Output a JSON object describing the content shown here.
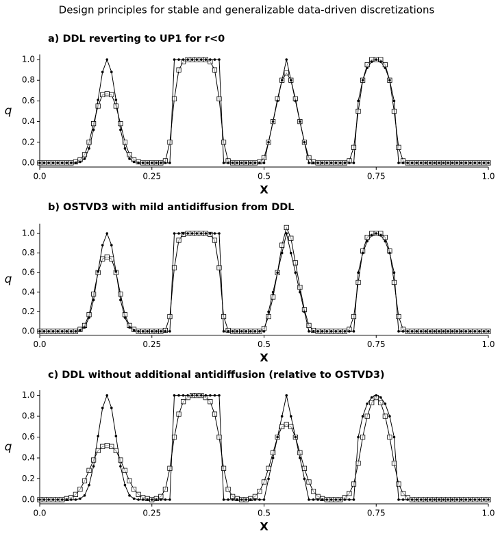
{
  "header": "Design principles for stable and generalizable data-driven discretizations",
  "chart_data": [
    {
      "type": "line",
      "title": "a) DDL reverting to UP1 for r<0",
      "xlabel": "X",
      "ylabel": "q",
      "x": [
        0,
        0.01,
        0.02,
        0.03,
        0.04,
        0.05,
        0.06,
        0.07,
        0.08,
        0.09,
        0.1,
        0.11,
        0.12,
        0.13,
        0.14,
        0.15,
        0.16,
        0.17,
        0.18,
        0.19,
        0.2,
        0.21,
        0.22,
        0.23,
        0.24,
        0.25,
        0.26,
        0.27,
        0.28,
        0.29,
        0.3,
        0.31,
        0.32,
        0.33,
        0.34,
        0.35,
        0.36,
        0.37,
        0.38,
        0.39,
        0.4,
        0.41,
        0.42,
        0.43,
        0.44,
        0.45,
        0.46,
        0.47,
        0.48,
        0.49,
        0.5,
        0.51,
        0.52,
        0.53,
        0.54,
        0.55,
        0.56,
        0.57,
        0.58,
        0.59,
        0.6,
        0.61,
        0.62,
        0.63,
        0.64,
        0.65,
        0.66,
        0.67,
        0.68,
        0.69,
        0.7,
        0.71,
        0.72,
        0.73,
        0.74,
        0.75,
        0.76,
        0.77,
        0.78,
        0.79,
        0.8,
        0.81,
        0.82,
        0.83,
        0.84,
        0.85,
        0.86,
        0.87,
        0.88,
        0.89,
        0.9,
        0.91,
        0.92,
        0.93,
        0.94,
        0.95,
        0.96,
        0.97,
        0.98,
        0.99,
        1
      ],
      "series": [
        {
          "color": "#000000",
          "marker": "square",
          "values": [
            0,
            0,
            0,
            0,
            0,
            0,
            0,
            0,
            0.01,
            0.03,
            0.08,
            0.2,
            0.38,
            0.55,
            0.66,
            0.67,
            0.66,
            0.55,
            0.38,
            0.2,
            0.08,
            0.03,
            0.01,
            0,
            0,
            0,
            0,
            0,
            0.02,
            0.2,
            0.62,
            0.9,
            0.98,
            1,
            1,
            1,
            1,
            1,
            0.98,
            0.9,
            0.62,
            0.2,
            0.02,
            0,
            0,
            0,
            0,
            0,
            0,
            0.01,
            0.05,
            0.2,
            0.4,
            0.62,
            0.8,
            0.87,
            0.8,
            0.62,
            0.4,
            0.2,
            0.05,
            0.01,
            0,
            0,
            0,
            0,
            0,
            0,
            0,
            0.02,
            0.15,
            0.5,
            0.8,
            0.95,
            1,
            1,
            1,
            0.95,
            0.8,
            0.5,
            0.15,
            0.02,
            0,
            0,
            0,
            0,
            0,
            0,
            0,
            0,
            0,
            0,
            0,
            0,
            0,
            0,
            0,
            0,
            0,
            0,
            0
          ]
        },
        {
          "color": "#000000",
          "marker": "dot",
          "values": [
            0,
            0,
            0,
            0,
            0,
            0,
            0,
            0,
            0,
            0.01,
            0.04,
            0.14,
            0.32,
            0.61,
            0.88,
            1,
            0.88,
            0.61,
            0.32,
            0.14,
            0.04,
            0.01,
            0,
            0,
            0,
            0,
            0,
            0,
            0,
            0,
            1,
            1,
            1,
            1,
            1,
            1,
            1,
            1,
            1,
            1,
            1,
            0,
            0,
            0,
            0,
            0,
            0,
            0,
            0,
            0,
            0,
            0.2,
            0.4,
            0.6,
            0.8,
            1,
            0.8,
            0.6,
            0.4,
            0.2,
            0,
            0,
            0,
            0,
            0,
            0,
            0,
            0,
            0,
            0,
            0,
            0.6,
            0.8,
            0.92,
            0.98,
            1,
            0.98,
            0.92,
            0.8,
            0.6,
            0,
            0,
            0,
            0,
            0,
            0,
            0,
            0,
            0,
            0,
            0,
            0,
            0,
            0,
            0,
            0,
            0,
            0,
            0,
            0,
            0
          ]
        }
      ],
      "xlim": [
        0,
        1
      ],
      "xticks": [
        {
          "value": 0,
          "label": "0.0"
        },
        0.25,
        0.5,
        0.75,
        {
          "value": 1,
          "label": "1.0"
        }
      ],
      "ylim": [
        -0.04,
        1.05
      ],
      "yticks": [
        {
          "value": 0,
          "label": "0.0"
        },
        0.2,
        0.4,
        0.6,
        0.8,
        {
          "value": 1,
          "label": "1.0"
        }
      ]
    },
    {
      "type": "line",
      "title": "b) OSTVD3 with mild antidiffusion from DDL",
      "xlabel": "X",
      "ylabel": "q",
      "x": [
        0,
        0.01,
        0.02,
        0.03,
        0.04,
        0.05,
        0.06,
        0.07,
        0.08,
        0.09,
        0.1,
        0.11,
        0.12,
        0.13,
        0.14,
        0.15,
        0.16,
        0.17,
        0.18,
        0.19,
        0.2,
        0.21,
        0.22,
        0.23,
        0.24,
        0.25,
        0.26,
        0.27,
        0.28,
        0.29,
        0.3,
        0.31,
        0.32,
        0.33,
        0.34,
        0.35,
        0.36,
        0.37,
        0.38,
        0.39,
        0.4,
        0.41,
        0.42,
        0.43,
        0.44,
        0.45,
        0.46,
        0.47,
        0.48,
        0.49,
        0.5,
        0.51,
        0.52,
        0.53,
        0.54,
        0.55,
        0.56,
        0.57,
        0.58,
        0.59,
        0.6,
        0.61,
        0.62,
        0.63,
        0.64,
        0.65,
        0.66,
        0.67,
        0.68,
        0.69,
        0.7,
        0.71,
        0.72,
        0.73,
        0.74,
        0.75,
        0.76,
        0.77,
        0.78,
        0.79,
        0.8,
        0.81,
        0.82,
        0.83,
        0.84,
        0.85,
        0.86,
        0.87,
        0.88,
        0.89,
        0.9,
        0.91,
        0.92,
        0.93,
        0.94,
        0.95,
        0.96,
        0.97,
        0.98,
        0.99,
        1
      ],
      "series": [
        {
          "color": "#000000",
          "marker": "square",
          "values": [
            0,
            0,
            0,
            0,
            0,
            0,
            0,
            0,
            0,
            0.02,
            0.06,
            0.17,
            0.38,
            0.6,
            0.74,
            0.76,
            0.74,
            0.6,
            0.38,
            0.17,
            0.06,
            0.02,
            0,
            0,
            0,
            0,
            0,
            0,
            0.01,
            0.15,
            0.65,
            0.93,
            0.99,
            1,
            1,
            1,
            1,
            1,
            0.99,
            0.93,
            0.65,
            0.15,
            0.01,
            0,
            0,
            0,
            0,
            0,
            0,
            0,
            0.03,
            0.15,
            0.35,
            0.6,
            0.88,
            1.06,
            0.95,
            0.7,
            0.45,
            0.22,
            0.06,
            0.01,
            0,
            0,
            0,
            0,
            0,
            0,
            0,
            0.02,
            0.15,
            0.5,
            0.82,
            0.96,
            1,
            1,
            1,
            0.96,
            0.82,
            0.5,
            0.15,
            0.02,
            0,
            0,
            0,
            0,
            0,
            0,
            0,
            0,
            0,
            0,
            0,
            0,
            0,
            0,
            0,
            0,
            0,
            0,
            0
          ]
        },
        {
          "color": "#000000",
          "marker": "dot",
          "values": [
            0,
            0,
            0,
            0,
            0,
            0,
            0,
            0,
            0,
            0.01,
            0.04,
            0.14,
            0.32,
            0.61,
            0.88,
            1,
            0.88,
            0.61,
            0.32,
            0.14,
            0.04,
            0.01,
            0,
            0,
            0,
            0,
            0,
            0,
            0,
            0,
            1,
            1,
            1,
            1,
            1,
            1,
            1,
            1,
            1,
            1,
            1,
            0,
            0,
            0,
            0,
            0,
            0,
            0,
            0,
            0,
            0,
            0.2,
            0.4,
            0.6,
            0.8,
            1,
            0.8,
            0.6,
            0.4,
            0.2,
            0,
            0,
            0,
            0,
            0,
            0,
            0,
            0,
            0,
            0,
            0,
            0.6,
            0.8,
            0.92,
            0.98,
            1,
            0.98,
            0.92,
            0.8,
            0.6,
            0,
            0,
            0,
            0,
            0,
            0,
            0,
            0,
            0,
            0,
            0,
            0,
            0,
            0,
            0,
            0,
            0,
            0,
            0,
            0,
            0
          ]
        }
      ],
      "xlim": [
        0,
        1
      ],
      "xticks": [
        {
          "value": 0,
          "label": "0.0"
        },
        0.25,
        0.5,
        0.75,
        {
          "value": 1,
          "label": "1.0"
        }
      ],
      "ylim": [
        -0.04,
        1.1
      ],
      "yticks": [
        {
          "value": 0,
          "label": "0.0"
        },
        0.2,
        0.4,
        0.6,
        0.8,
        {
          "value": 1,
          "label": "1.0"
        }
      ]
    },
    {
      "type": "line",
      "title": "c) DDL without additional antidiffusion (relative to OSTVD3)",
      "xlabel": "X",
      "ylabel": "q",
      "x": [
        0,
        0.01,
        0.02,
        0.03,
        0.04,
        0.05,
        0.06,
        0.07,
        0.08,
        0.09,
        0.1,
        0.11,
        0.12,
        0.13,
        0.14,
        0.15,
        0.16,
        0.17,
        0.18,
        0.19,
        0.2,
        0.21,
        0.22,
        0.23,
        0.24,
        0.25,
        0.26,
        0.27,
        0.28,
        0.29,
        0.3,
        0.31,
        0.32,
        0.33,
        0.34,
        0.35,
        0.36,
        0.37,
        0.38,
        0.39,
        0.4,
        0.41,
        0.42,
        0.43,
        0.44,
        0.45,
        0.46,
        0.47,
        0.48,
        0.49,
        0.5,
        0.51,
        0.52,
        0.53,
        0.54,
        0.55,
        0.56,
        0.57,
        0.58,
        0.59,
        0.6,
        0.61,
        0.62,
        0.63,
        0.64,
        0.65,
        0.66,
        0.67,
        0.68,
        0.69,
        0.7,
        0.71,
        0.72,
        0.73,
        0.74,
        0.75,
        0.76,
        0.77,
        0.78,
        0.79,
        0.8,
        0.81,
        0.82,
        0.83,
        0.84,
        0.85,
        0.86,
        0.87,
        0.88,
        0.89,
        0.9,
        0.91,
        0.92,
        0.93,
        0.94,
        0.95,
        0.96,
        0.97,
        0.98,
        0.99,
        1
      ],
      "series": [
        {
          "color": "#000000",
          "marker": "square",
          "values": [
            0,
            0,
            0,
            0,
            0,
            0,
            0.01,
            0.02,
            0.05,
            0.1,
            0.18,
            0.28,
            0.38,
            0.47,
            0.51,
            0.52,
            0.51,
            0.47,
            0.38,
            0.28,
            0.18,
            0.1,
            0.05,
            0.02,
            0.01,
            0,
            0.01,
            0.03,
            0.1,
            0.3,
            0.6,
            0.82,
            0.94,
            0.98,
            1,
            1,
            1,
            0.98,
            0.94,
            0.82,
            0.6,
            0.3,
            0.1,
            0.03,
            0.01,
            0,
            0,
            0.01,
            0.03,
            0.08,
            0.17,
            0.3,
            0.45,
            0.6,
            0.7,
            0.72,
            0.7,
            0.6,
            0.45,
            0.3,
            0.17,
            0.08,
            0.03,
            0.01,
            0,
            0,
            0,
            0,
            0.02,
            0.06,
            0.15,
            0.35,
            0.6,
            0.8,
            0.93,
            0.98,
            0.93,
            0.8,
            0.6,
            0.35,
            0.15,
            0.06,
            0.02,
            0,
            0,
            0,
            0,
            0,
            0,
            0,
            0,
            0,
            0,
            0,
            0,
            0,
            0,
            0,
            0,
            0,
            0
          ]
        },
        {
          "color": "#000000",
          "marker": "dot",
          "values": [
            0,
            0,
            0,
            0,
            0,
            0,
            0,
            0,
            0,
            0.01,
            0.04,
            0.14,
            0.32,
            0.61,
            0.88,
            1,
            0.88,
            0.61,
            0.32,
            0.14,
            0.04,
            0.01,
            0,
            0,
            0,
            0,
            0,
            0,
            0,
            0,
            1,
            1,
            1,
            1,
            1,
            1,
            1,
            1,
            1,
            1,
            1,
            0,
            0,
            0,
            0,
            0,
            0,
            0,
            0,
            0,
            0,
            0.2,
            0.4,
            0.6,
            0.8,
            1,
            0.8,
            0.6,
            0.4,
            0.2,
            0,
            0,
            0,
            0,
            0,
            0,
            0,
            0,
            0,
            0,
            0,
            0.6,
            0.8,
            0.92,
            0.98,
            1,
            0.98,
            0.92,
            0.8,
            0.6,
            0,
            0,
            0,
            0,
            0,
            0,
            0,
            0,
            0,
            0,
            0,
            0,
            0,
            0,
            0,
            0,
            0,
            0,
            0,
            0,
            0
          ]
        }
      ],
      "xlim": [
        0,
        1
      ],
      "xticks": [
        {
          "value": 0,
          "label": "0.0"
        },
        0.25,
        0.5,
        0.75,
        {
          "value": 1,
          "label": "1.0"
        }
      ],
      "ylim": [
        -0.04,
        1.05
      ],
      "yticks": [
        {
          "value": 0,
          "label": "0.0"
        },
        0.2,
        0.4,
        0.6,
        0.8,
        {
          "value": 1,
          "label": "1.0"
        }
      ]
    }
  ]
}
